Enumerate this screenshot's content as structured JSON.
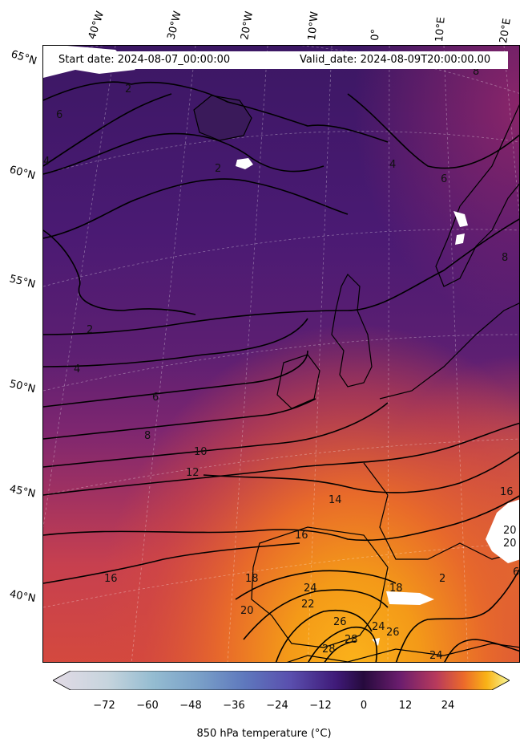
{
  "header": {
    "start_date": "Start date: 2024-08-07_00:00:00",
    "valid_date": "Valid_date: 2024-08-09T20:00:00.00"
  },
  "axes": {
    "longitude_labels": [
      "40°W",
      "30°W",
      "20°W",
      "10°W",
      "0°",
      "10°E",
      "20°E"
    ],
    "latitude_labels": [
      "65°N",
      "60°N",
      "55°N",
      "50°N",
      "45°N",
      "40°N"
    ]
  },
  "map": {
    "variable": "850 hPa temperature",
    "contour_levels": [
      "2",
      "4",
      "6",
      "8",
      "10",
      "12",
      "14",
      "16",
      "18",
      "20",
      "22",
      "24",
      "26",
      "28"
    ],
    "contour_labels": [
      {
        "text": "2"
      },
      {
        "text": "6"
      },
      {
        "text": "4"
      },
      {
        "text": "2"
      },
      {
        "text": "6"
      },
      {
        "text": "4"
      },
      {
        "text": "2"
      },
      {
        "text": "4"
      },
      {
        "text": "6"
      },
      {
        "text": "8"
      },
      {
        "text": "10"
      },
      {
        "text": "12"
      },
      {
        "text": "14"
      },
      {
        "text": "16"
      },
      {
        "text": "16"
      },
      {
        "text": "16"
      },
      {
        "text": "18"
      },
      {
        "text": "20"
      },
      {
        "text": "18"
      },
      {
        "text": "20"
      },
      {
        "text": "20"
      },
      {
        "text": "22"
      },
      {
        "text": "24"
      },
      {
        "text": "26"
      },
      {
        "text": "28"
      },
      {
        "text": "28"
      },
      {
        "text": "24"
      },
      {
        "text": "26"
      },
      {
        "text": "24"
      },
      {
        "text": "2"
      },
      {
        "text": "8"
      },
      {
        "text": "8"
      },
      {
        "text": "6"
      }
    ]
  },
  "colorbar": {
    "ticks": [
      "−72",
      "−60",
      "−48",
      "−36",
      "−24",
      "−12",
      "0",
      "12",
      "24"
    ],
    "title": "850 hPa temperature (°C)",
    "colors": [
      "#e3dbe6",
      "#a9c5d4",
      "#7fa9c8",
      "#5e78bd",
      "#5a4fae",
      "#3f1a78",
      "#260a3d",
      "#6b1d6e",
      "#b83a5c",
      "#ec6a2a",
      "#f9b316",
      "#f8f89a"
    ]
  }
}
